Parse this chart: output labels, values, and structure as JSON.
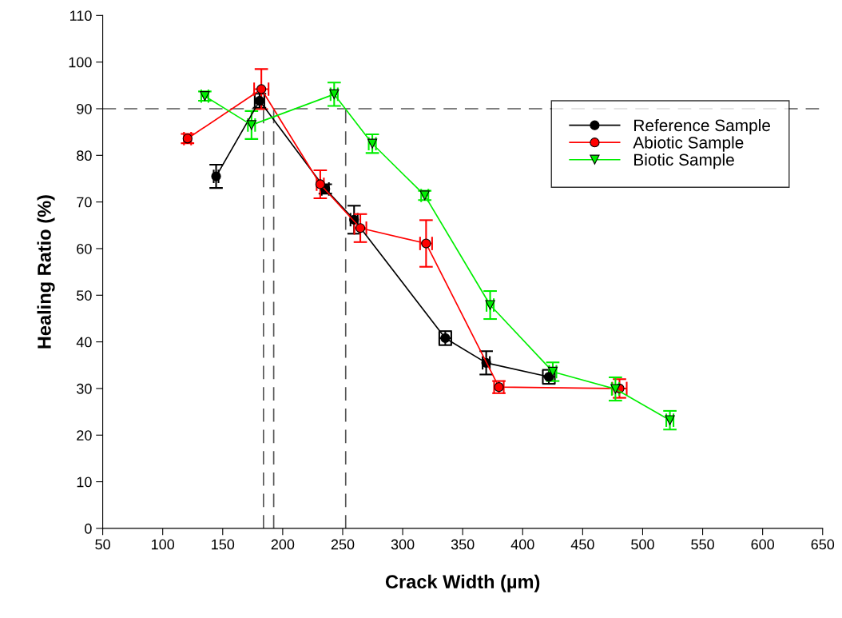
{
  "chart_data": {
    "type": "line",
    "xlabel": "Crack Width (µm)",
    "ylabel": "Healing Ratio (%)",
    "xlim": [
      50,
      650
    ],
    "xticks": [
      50,
      100,
      150,
      200,
      250,
      300,
      350,
      400,
      450,
      500,
      550,
      600,
      650
    ],
    "ylim": [
      0,
      110
    ],
    "yticks": [
      0,
      10,
      20,
      30,
      40,
      50,
      60,
      70,
      80,
      90,
      100,
      110
    ],
    "legend": "top right",
    "grid": false,
    "ref_lines": [
      {
        "axis": "y",
        "value": 90,
        "color": "#555555",
        "line_style": "dashed"
      },
      {
        "axis": "x",
        "value": 184,
        "color": "#555555",
        "line_style": "dashed"
      },
      {
        "axis": "x",
        "value": 192.5,
        "color": "#555555",
        "line_style": "dashed"
      },
      {
        "axis": "x",
        "value": 252.5,
        "color": "#555555",
        "line_style": "dashed"
      }
    ],
    "series": [
      {
        "name": "Reference Sample",
        "color": "#000000",
        "marker": "circle",
        "x": [
          144.5,
          180.7,
          235.5,
          259.5,
          335.5,
          369.6,
          421.8
        ],
        "values": [
          75.5,
          91.7,
          72.8,
          66.2,
          40.8,
          35.5,
          32.5
        ],
        "errors": [
          2.5,
          1.5,
          1,
          3,
          1.5,
          2.5,
          1.5
        ],
        "xerrors": [
          2,
          4,
          3,
          3,
          5,
          3,
          5
        ]
      },
      {
        "name": "Abiotic Sample",
        "color": "#ff0000",
        "marker": "circle",
        "x": [
          120.7,
          182.2,
          231.3,
          264.7,
          319.5,
          380.2,
          480.7
        ],
        "values": [
          83.6,
          94.2,
          73.8,
          64.4,
          61.1,
          30.3,
          30.0
        ],
        "errors": [
          1,
          4.3,
          3,
          3,
          5,
          1.3,
          2
        ],
        "xerrors": [
          3,
          6,
          3,
          5,
          5,
          4,
          6
        ]
      },
      {
        "name": "Biotic Sample",
        "color": "#00ee00",
        "marker": "triangle",
        "x": [
          135.1,
          174,
          242.9,
          274.7,
          318.4,
          372.9,
          425.1,
          477.3,
          522.7
        ],
        "values": [
          92.7,
          86.5,
          93.1,
          82.5,
          71.4,
          47.9,
          33.6,
          29.9,
          23.2
        ],
        "errors": [
          1,
          3,
          2.5,
          2,
          1,
          3,
          2,
          2.5,
          2
        ],
        "xerrors": [
          3,
          3,
          3,
          3,
          3,
          3,
          3,
          3,
          3
        ]
      }
    ]
  }
}
